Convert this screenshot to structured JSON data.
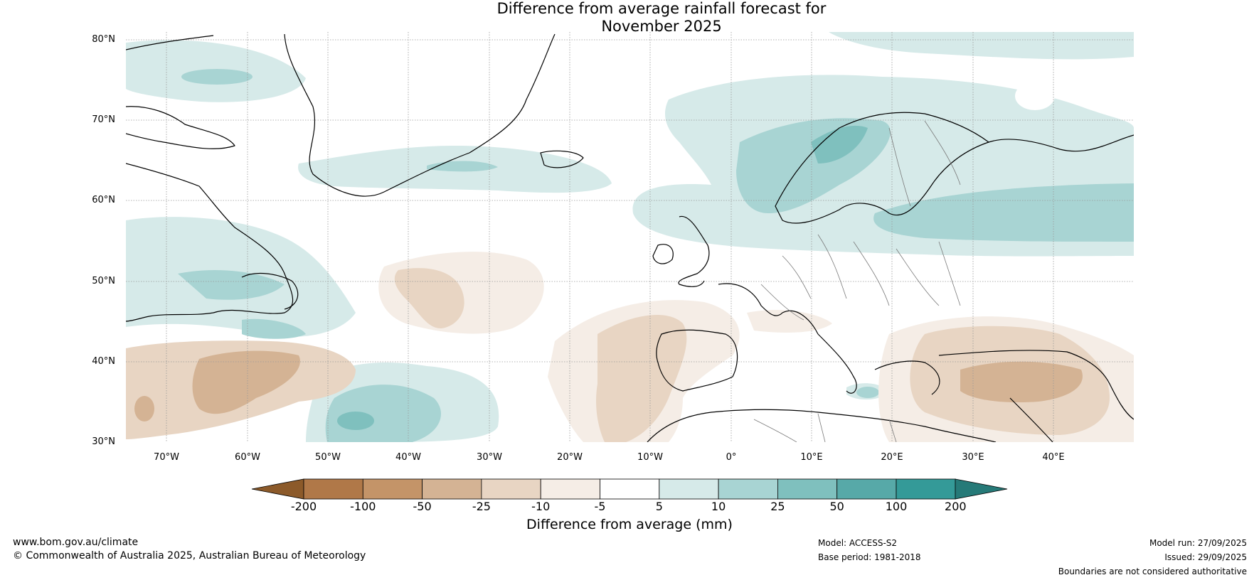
{
  "title": {
    "line1": "Difference from average rainfall forecast for",
    "line2": "November 2025"
  },
  "map": {
    "lat_labels": [
      "80°N",
      "70°N",
      "60°N",
      "50°N",
      "40°N",
      "30°N"
    ],
    "lon_labels": [
      "70°W",
      "60°W",
      "50°W",
      "40°W",
      "30°W",
      "20°W",
      "10°W",
      "0°",
      "10°E",
      "20°E",
      "30°E",
      "40°E"
    ]
  },
  "colorbar": {
    "title": "Difference from average (mm)",
    "ticks": [
      "-200",
      "-100",
      "-50",
      "-25",
      "-10",
      "-5",
      "5",
      "10",
      "25",
      "50",
      "100",
      "200"
    ],
    "colors": {
      "below_min": "#8c5a2a",
      "bins": [
        "#b07848",
        "#c49468",
        "#d4b394",
        "#e8d5c3",
        "#f5ede6",
        "#ffffff",
        "#d6eae9",
        "#a8d4d3",
        "#7fc0be",
        "#57a9a8",
        "#349a98"
      ],
      "above_max": "#267a78"
    }
  },
  "footer": {
    "website": "www.bom.gov.au/climate",
    "copyright": "© Commonwealth of Australia 2025, Australian Bureau of Meteorology",
    "model": "Model: ACCESS-S2",
    "base_period": "Base period: 1981-2018",
    "model_run": "Model run: 27/09/2025",
    "issued": "Issued: 29/09/2025",
    "disclaimer": "Boundaries are not considered authoritative"
  }
}
